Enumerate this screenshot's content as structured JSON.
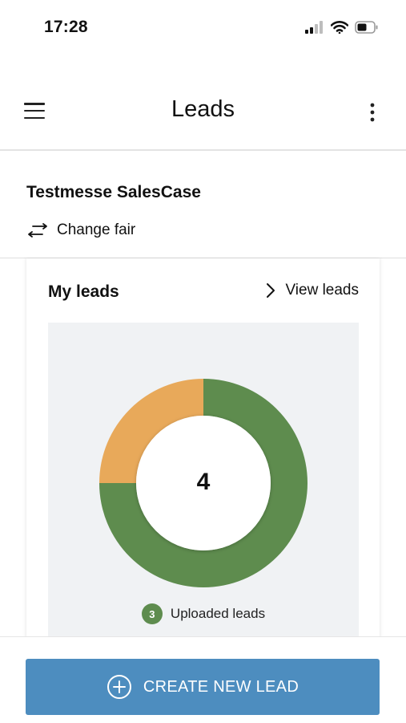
{
  "status_bar": {
    "time": "17:28",
    "icons": [
      "cellular-signal-icon",
      "wifi-icon",
      "battery-icon"
    ]
  },
  "app_bar": {
    "title": "Leads",
    "left_icon": "hamburger-menu-icon",
    "right_icon": "more-vertical-icon"
  },
  "fair": {
    "name": "Testmesse SalesCase",
    "change_label": "Change fair",
    "change_icon": "swap-arrows-icon"
  },
  "my_leads": {
    "title": "My leads",
    "view_label": "View leads",
    "view_icon": "chevron-right-icon"
  },
  "chart_data": {
    "type": "pie",
    "style": "donut",
    "center_value": "4",
    "slices": [
      {
        "label": "Uploaded leads",
        "value": 3,
        "color": "#5e8c4e"
      },
      {
        "label": "",
        "value": 1,
        "color": "#e8a95a"
      }
    ],
    "legend": [
      {
        "count": "3",
        "label": "Uploaded leads",
        "color": "#5e8c4e"
      }
    ],
    "legend_position": "bottom"
  },
  "actions": {
    "create_label": "CREATE NEW LEAD",
    "create_icon": "plus-circle-icon",
    "button_color": "#4d8dbf"
  }
}
